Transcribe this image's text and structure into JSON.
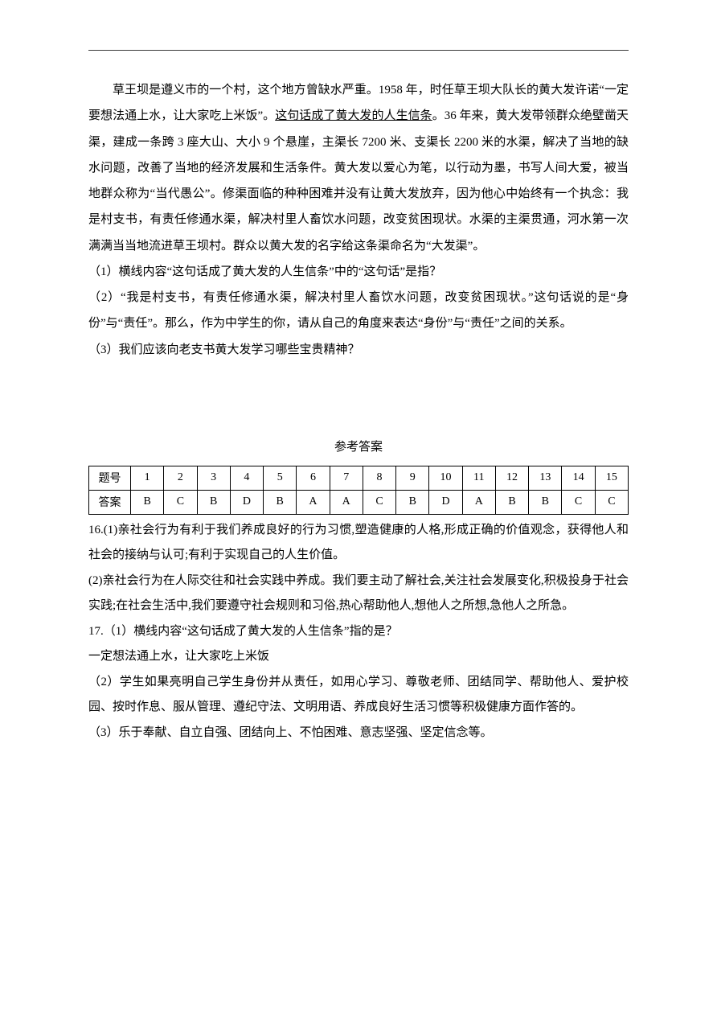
{
  "passage": {
    "p1_pre": "草王坝是遵义市的一个村，这个地方曾缺水严重。1958 年，时任草王坝大队长的黄大发许诺“一定要想法通上水，让大家吃上米饭”。",
    "p1_underline": "这句话成了黄大发的人生信条",
    "p1_post": "。36 年来，黄大发带领群众绝壁凿天渠，建成一条跨 3 座大山、大小 9 个悬崖，主渠长 7200 米、支渠长 2200 米的水渠，解决了当地的缺水问题，改善了当地的经济发展和生活条件。黄大发以爱心为笔，以行动为墨，书写人间大爱，被当地群众称为“当代愚公”。修渠面临的种种困难并没有让黄大发放弃，因为他心中始终有一个执念：我是村支书，有责任修通水渠，解决村里人畜饮水问题，改变贫困现状。水渠的主渠贯通，河水第一次满满当当地流进草王坝村。群众以黄大发的名字给这条渠命名为“大发渠”。",
    "q1": "（1）横线内容“这句话成了黄大发的人生信条”中的“这句话”是指？",
    "q2": "（2）“我是村支书，有责任修通水渠，解决村里人畜饮水问题，改变贫困现状。”这句话说的是“身份”与“责任”。那么，作为中学生的你，请从自己的角度来表达“身份”与“责任”之间的关系。",
    "q3": "（3）我们应该向老支书黄大发学习哪些宝贵精神？"
  },
  "answer_section": {
    "title": "参考答案",
    "table": {
      "row_header_1": "题号",
      "row_header_2": "答案",
      "nums": [
        "1",
        "2",
        "3",
        "4",
        "5",
        "6",
        "7",
        "8",
        "9",
        "10",
        "11",
        "12",
        "13",
        "14",
        "15"
      ],
      "answers": [
        "B",
        "C",
        "B",
        "D",
        "B",
        "A",
        "A",
        "C",
        "B",
        "D",
        "A",
        "B",
        "B",
        "C",
        "C"
      ]
    },
    "a16_1": "16.(1)亲社会行为有利于我们养成良好的行为习惯,塑造健康的人格,形成正确的价值观念，获得他人和社会的接纳与认可;有利于实现自己的人生价值。",
    "a16_2": "(2)亲社会行为在人际交往和社会实践中养成。我们要主动了解社会,关注社会发展变化,积极投身于社会实践;在社会生活中,我们要遵守社会规则和习俗,热心帮助他人,想他人之所想,急他人之所急。",
    "a17_1a": "17.（1）横线内容“这句话成了黄大发的人生信条”指的是？",
    "a17_1b": "一定想法通上水，让大家吃上米饭",
    "a17_2": "（2）学生如果亮明自己学生身份并从责任，如用心学习、尊敬老师、团结同学、帮助他人、爱护校园、按时作息、服从管理、遵纪守法、文明用语、养成良好生活习惯等积极健康方面作答的。",
    "a17_3": "（3）乐于奉献、自立自强、团结向上、不怕困难、意志坚强、坚定信念等。"
  }
}
